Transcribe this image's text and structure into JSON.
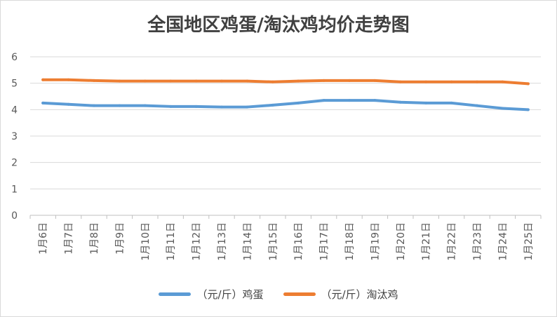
{
  "chart_data": {
    "type": "line",
    "title": "全国地区鸡蛋/淘汰鸡均价走势图",
    "categories": [
      "1月6日",
      "1月7日",
      "1月8日",
      "1月9日",
      "1月10日",
      "1月11日",
      "1月12日",
      "1月13日",
      "1月14日",
      "1月15日",
      "1月16日",
      "1月17日",
      "1月18日",
      "1月19日",
      "1月20日",
      "1月21日",
      "1月22日",
      "1月23日",
      "1月24日",
      "1月25日"
    ],
    "ylim": [
      0,
      6
    ],
    "yticks": [
      0,
      1,
      2,
      3,
      4,
      5,
      6
    ],
    "grid": true,
    "legend_position": "bottom",
    "series": [
      {
        "name": "（元/斤）鸡蛋",
        "color": "#5b9bd5",
        "values": [
          4.25,
          4.2,
          4.15,
          4.15,
          4.15,
          4.12,
          4.12,
          4.1,
          4.1,
          4.17,
          4.25,
          4.35,
          4.35,
          4.35,
          4.28,
          4.25,
          4.25,
          4.15,
          4.05,
          4.0
        ]
      },
      {
        "name": "（元/斤）淘汰鸡",
        "color": "#ed7d31",
        "values": [
          5.13,
          5.13,
          5.1,
          5.08,
          5.08,
          5.08,
          5.08,
          5.08,
          5.08,
          5.05,
          5.08,
          5.1,
          5.1,
          5.1,
          5.05,
          5.05,
          5.05,
          5.05,
          5.05,
          4.98
        ]
      }
    ]
  }
}
